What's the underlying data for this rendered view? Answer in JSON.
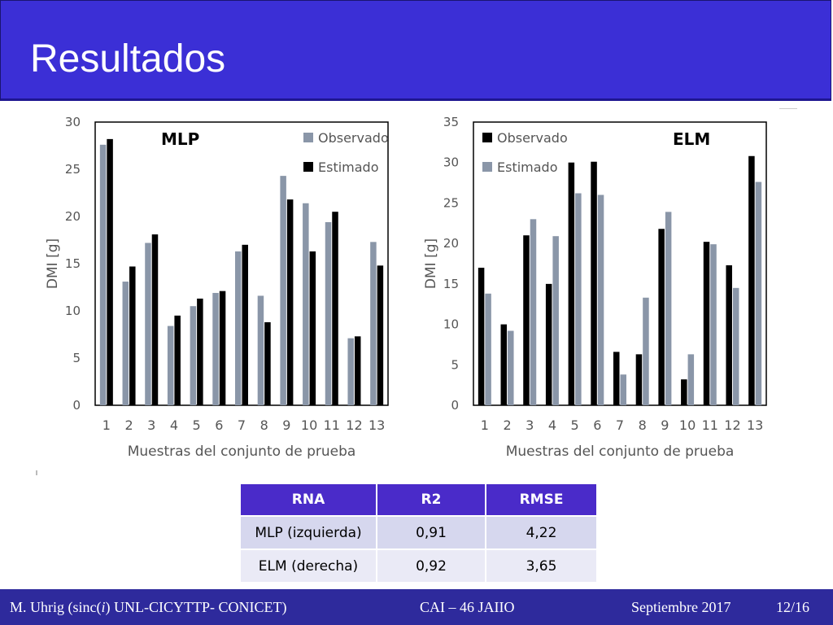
{
  "title": "Resultados",
  "colors": {
    "header": "#3b2fd6",
    "footer": "#2e2a9c",
    "table_header": "#4a2bc9",
    "observado": "#8a96a8",
    "estimado": "#000000"
  },
  "chart_data": [
    {
      "type": "bar",
      "annotation": "MLP",
      "xlabel": "Muestras del conjunto de prueba",
      "ylabel": "DMI  [g]",
      "ylim": [
        0,
        30
      ],
      "yticks": [
        0,
        5,
        10,
        15,
        20,
        25,
        30
      ],
      "grid": false,
      "legend": "top-right",
      "categories": [
        "1",
        "2",
        "3",
        "4",
        "5",
        "6",
        "7",
        "8",
        "9",
        "10",
        "11",
        "12",
        "13"
      ],
      "series": [
        {
          "name": "Observado",
          "color": "#8a96a8",
          "values": [
            27.6,
            13.1,
            17.2,
            8.4,
            10.5,
            11.9,
            16.3,
            11.6,
            24.3,
            21.4,
            19.4,
            7.1,
            17.3
          ]
        },
        {
          "name": "Estimado",
          "color": "#000000",
          "values": [
            28.2,
            14.7,
            18.1,
            9.5,
            11.3,
            12.1,
            17.0,
            8.8,
            21.8,
            16.3,
            20.5,
            7.3,
            14.8
          ]
        }
      ]
    },
    {
      "type": "bar",
      "annotation": "ELM",
      "xlabel": "Muestras del conjunto de prueba",
      "ylabel": "DMI  [g]",
      "ylim": [
        0,
        35
      ],
      "yticks": [
        0,
        5,
        10,
        15,
        20,
        25,
        30,
        35
      ],
      "grid": false,
      "legend": "top-left",
      "categories": [
        "1",
        "2",
        "3",
        "4",
        "5",
        "6",
        "7",
        "8",
        "9",
        "10",
        "11",
        "12",
        "13"
      ],
      "series": [
        {
          "name": "Observado",
          "color": "#000000",
          "values": [
            17.0,
            10.0,
            21.0,
            15.0,
            30.0,
            30.1,
            6.6,
            6.3,
            21.8,
            3.2,
            20.2,
            17.3,
            30.8
          ]
        },
        {
          "name": "Estimado",
          "color": "#8a96a8",
          "values": [
            13.8,
            9.2,
            23.0,
            20.9,
            26.2,
            26.0,
            3.8,
            13.3,
            23.9,
            6.3,
            19.9,
            14.5,
            27.6
          ]
        }
      ]
    }
  ],
  "table": {
    "headers": [
      "RNA",
      "R2",
      "RMSE"
    ],
    "rows": [
      [
        "MLP (izquierda)",
        "0,91",
        "4,22"
      ],
      [
        "ELM (derecha)",
        "0,92",
        "3,65"
      ]
    ]
  },
  "footer": {
    "author_pre": "M. Uhrig (sinc(",
    "author_italic": "i",
    "author_post": ") UNL-CICYTTP- CONICET)",
    "event": "CAI – 46 JAIIO",
    "date": "Septiembre 2017",
    "page": "12/16"
  }
}
